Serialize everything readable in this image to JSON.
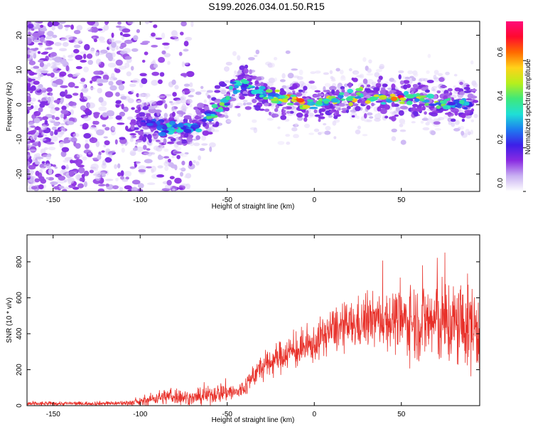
{
  "title": "S199.2026.034.01.50.R15",
  "colors": {
    "line": "#e8312a",
    "axis": "#000000",
    "colormap": [
      "#ffffff",
      "#c9b1f2",
      "#8a2be2",
      "#3d1fe8",
      "#1e7cf0",
      "#1fe0d6",
      "#3fe87a",
      "#b6ef1c",
      "#ffd21a",
      "#ff6a00",
      "#ff0a2e",
      "#ff0a7a"
    ]
  },
  "chart_data": [
    {
      "type": "heatmap",
      "title": "S199.2026.034.01.50.R15",
      "xlabel": "Height of straight line (km)",
      "ylabel": "Frequency (Hz)",
      "xlim": [
        -165,
        95
      ],
      "ylim": [
        -25,
        24
      ],
      "xticks": [
        -150,
        -100,
        -50,
        0,
        50
      ],
      "yticks": [
        -20,
        -10,
        0,
        10,
        20
      ],
      "colorbar": {
        "label": "Normalized spectral amplitude",
        "range": [
          0.0,
          0.78
        ],
        "ticks": [
          0.0,
          0.2,
          0.4,
          0.6
        ],
        "tick_labels": [
          "0.0",
          "0.2",
          "0.4",
          "0.6"
        ]
      },
      "ridge": {
        "x": [
          -100,
          -90,
          -80,
          -72,
          -65,
          -60,
          -55,
          -50,
          -47,
          -43,
          -38,
          -35,
          -30,
          -25,
          -20,
          -10,
          0,
          10,
          20,
          30,
          40,
          50,
          60,
          70,
          80,
          92
        ],
        "frequency": [
          -5,
          -6,
          -7,
          -7,
          -5,
          -3,
          -1,
          2,
          5,
          6,
          5,
          4,
          3,
          3,
          2,
          1,
          0,
          1,
          2,
          3,
          2,
          2,
          2,
          1,
          0,
          1
        ],
        "amplitude": [
          0.25,
          0.3,
          0.45,
          0.4,
          0.35,
          0.45,
          0.5,
          0.5,
          0.45,
          0.45,
          0.4,
          0.4,
          0.4,
          0.55,
          0.6,
          0.75,
          0.6,
          0.55,
          0.6,
          0.55,
          0.6,
          0.75,
          0.6,
          0.5,
          0.45,
          0.45
        ]
      }
    },
    {
      "type": "line",
      "xlabel": "Height of straight line (km)",
      "ylabel": "SNR (10 * v/v)",
      "xlim": [
        -165,
        95
      ],
      "ylim": [
        0,
        950
      ],
      "xticks": [
        -150,
        -100,
        -50,
        0,
        50
      ],
      "yticks": [
        0,
        200,
        400,
        600,
        800
      ],
      "series": [
        {
          "name": "SNR",
          "x": [
            -165,
            -150,
            -130,
            -110,
            -100,
            -90,
            -80,
            -70,
            -60,
            -50,
            -45,
            -40,
            -35,
            -30,
            -25,
            -20,
            -15,
            -10,
            -5,
            0,
            5,
            10,
            20,
            30,
            40,
            50,
            60,
            70,
            80,
            90,
            95
          ],
          "mean": [
            10,
            12,
            12,
            14,
            20,
            45,
            55,
            40,
            60,
            80,
            70,
            100,
            170,
            210,
            240,
            270,
            300,
            300,
            320,
            340,
            390,
            420,
            440,
            470,
            480,
            470,
            470,
            470,
            450,
            440,
            430
          ],
          "noise": [
            12,
            10,
            10,
            12,
            20,
            35,
            45,
            35,
            45,
            55,
            40,
            50,
            60,
            70,
            75,
            80,
            85,
            85,
            90,
            90,
            100,
            110,
            120,
            130,
            140,
            160,
            200,
            230,
            230,
            220,
            220
          ]
        }
      ]
    }
  ]
}
